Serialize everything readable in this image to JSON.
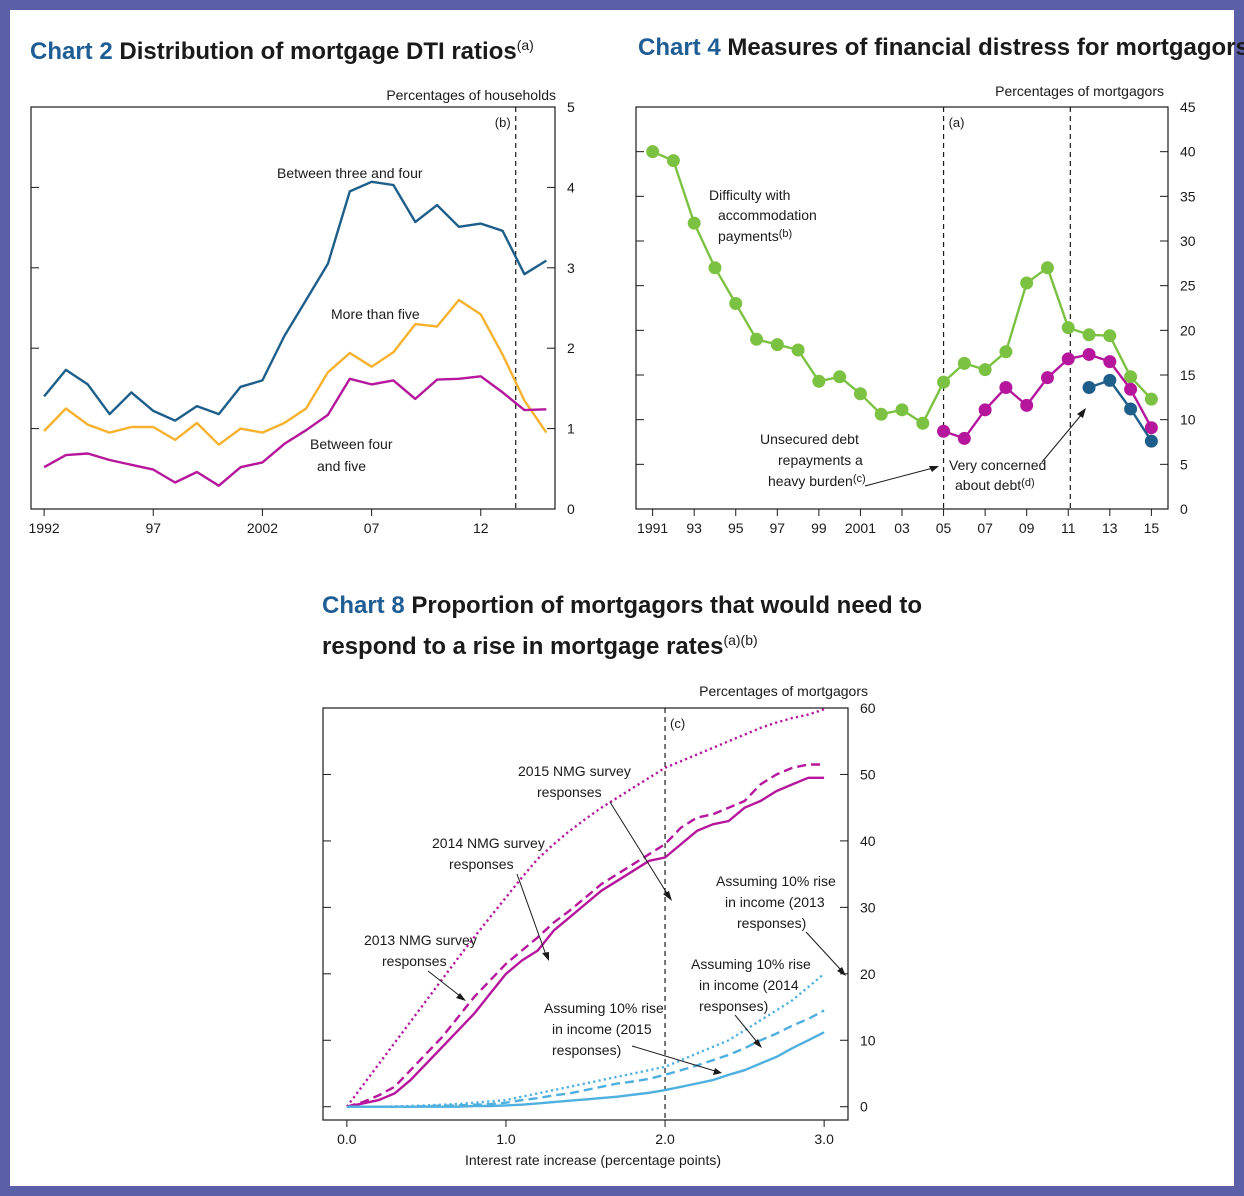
{
  "colors": {
    "frame": "#5b5fa8",
    "title_number": "#1f5d95",
    "dark_blue": "#1d5f8a",
    "yellow": "#f6b12e",
    "magenta": "#b5169c",
    "green": "#7cc242",
    "light_blue": "#4fb0e0"
  },
  "chart_data": [
    {
      "type": "line",
      "title_number": "Chart 2",
      "title": "Distribution of mortgage DTI ratios",
      "title_note": "(a)",
      "ylabel": "Percentages of households",
      "ylim": [
        0,
        5
      ],
      "yticks": [
        0,
        1,
        2,
        3,
        4,
        5
      ],
      "xlim": [
        1991.4,
        2015.4
      ],
      "xticks": [
        1992,
        1997,
        2002,
        2007,
        2012
      ],
      "xtick_labels": [
        "1992",
        "97",
        "2002",
        "07",
        "12"
      ],
      "vline": {
        "x": 2013.6,
        "label": "(b)"
      },
      "x": [
        1992,
        1993,
        1994,
        1995,
        1996,
        1997,
        1998,
        1999,
        2000,
        2001,
        2002,
        2003,
        2004,
        2005,
        2006,
        2007,
        2008,
        2009,
        2010,
        2011,
        2012,
        2013,
        2014,
        2015
      ],
      "series": [
        {
          "name": "Between three and four",
          "color": "#1d5f8a",
          "values": [
            1.4,
            1.73,
            1.55,
            1.18,
            1.45,
            1.22,
            1.1,
            1.28,
            1.18,
            1.52,
            1.6,
            2.15,
            2.6,
            3.05,
            3.95,
            4.07,
            4.03,
            3.57,
            3.78,
            3.51,
            3.55,
            3.46,
            2.92,
            3.09
          ]
        },
        {
          "name": "More than five",
          "color": "#f6b12e",
          "values": [
            0.97,
            1.25,
            1.05,
            0.95,
            1.02,
            1.02,
            0.86,
            1.07,
            0.8,
            1.0,
            0.95,
            1.07,
            1.25,
            1.7,
            1.94,
            1.77,
            1.95,
            2.3,
            2.27,
            2.6,
            2.42,
            1.92,
            1.35,
            0.95
          ]
        },
        {
          "name": "Between four and five",
          "color": "#b5169c",
          "values": [
            0.52,
            0.67,
            0.69,
            0.61,
            0.55,
            0.49,
            0.33,
            0.46,
            0.29,
            0.52,
            0.58,
            0.81,
            0.98,
            1.17,
            1.62,
            1.55,
            1.6,
            1.37,
            1.61,
            1.62,
            1.65,
            1.45,
            1.23,
            1.24
          ]
        }
      ],
      "annotations": {
        "three_four": "Between three and four",
        "more_five": "More than five",
        "four_five_1": "Between four",
        "four_five_2": "and five"
      }
    },
    {
      "type": "line",
      "title_number": "Chart 4",
      "title": "Measures of financial distress for mortgagors",
      "ylabel": "Percentages of mortgagors",
      "ylim": [
        0,
        45
      ],
      "yticks": [
        0,
        5,
        10,
        15,
        20,
        25,
        30,
        35,
        40,
        45
      ],
      "xlim": [
        1990.2,
        2015.8
      ],
      "xticks": [
        1991,
        1993,
        1995,
        1997,
        1999,
        2001,
        2003,
        2005,
        2007,
        2009,
        2011,
        2013,
        2015
      ],
      "xtick_labels": [
        "1991",
        "93",
        "95",
        "97",
        "99",
        "2001",
        "03",
        "05",
        "07",
        "09",
        "11",
        "13",
        "15"
      ],
      "vlines": [
        {
          "x": 2005,
          "label": "(a)"
        },
        {
          "x": 2011.1,
          "label": ""
        }
      ],
      "series": [
        {
          "name": "Difficulty with accommodation payments",
          "color": "#7cc242",
          "x": [
            1991,
            1992,
            1993,
            1994,
            1995,
            1996,
            1997,
            1998,
            1999,
            2000,
            2001,
            2002,
            2003,
            2004,
            2005,
            2006,
            2007,
            2008,
            2009,
            2010,
            2011,
            2012,
            2013,
            2014,
            2015
          ],
          "values": [
            40,
            39,
            32,
            27,
            23,
            19,
            18.4,
            17.8,
            14.3,
            14.8,
            12.9,
            10.6,
            11.1,
            9.6,
            14.2,
            16.3,
            15.6,
            17.6,
            25.3,
            27,
            20.3,
            19.5,
            19.4,
            14.8,
            12.3
          ]
        },
        {
          "name": "Unsecured debt repayments a heavy burden",
          "color": "#b5169c",
          "x": [
            2005,
            2006,
            2007,
            2008,
            2009,
            2010,
            2011,
            2012,
            2013,
            2014,
            2015
          ],
          "values": [
            8.7,
            7.9,
            11.1,
            13.6,
            11.6,
            14.7,
            16.8,
            17.3,
            16.5,
            13.4,
            9.1
          ]
        },
        {
          "name": "Very concerned about debt",
          "color": "#1d5f8a",
          "x": [
            2012,
            2013,
            2014,
            2015
          ],
          "values": [
            13.6,
            14.4,
            11.2,
            7.6
          ]
        }
      ],
      "annotations": {
        "green_1": "Difficulty with",
        "green_2": "accommodation",
        "green_3": "payments",
        "green_note": "(b)",
        "unsec_1": "Unsecured debt",
        "unsec_2": "repayments a",
        "unsec_3": "heavy burden",
        "unsec_note": "(c)",
        "conc_1": "Very concerned",
        "conc_2": "about debt",
        "conc_note": "(d)"
      }
    },
    {
      "type": "line",
      "title_number": "Chart 8",
      "title_line1": "Proportion of mortgagors that would need to",
      "title_line2": "respond to a rise in mortgage rates",
      "title_note": "(a)(b)",
      "ylabel": "Percentages of mortgagors",
      "xlabel": "Interest rate increase (percentage points)",
      "ylim": [
        -2,
        60
      ],
      "yticks": [
        0,
        10,
        20,
        30,
        40,
        50,
        60
      ],
      "xlim": [
        -0.15,
        3.15
      ],
      "xticks": [
        0,
        1,
        2,
        3
      ],
      "xtick_labels": [
        "0.0",
        "1.0",
        "2.0",
        "3.0"
      ],
      "vline": {
        "x": 2.0,
        "label": "(c)"
      },
      "x": [
        0,
        0.1,
        0.2,
        0.3,
        0.4,
        0.5,
        0.6,
        0.7,
        0.8,
        0.9,
        1.0,
        1.1,
        1.2,
        1.3,
        1.4,
        1.5,
        1.6,
        1.7,
        1.8,
        1.9,
        2.0,
        2.1,
        2.2,
        2.3,
        2.4,
        2.5,
        2.6,
        2.7,
        2.8,
        2.9,
        3.0
      ],
      "series": [
        {
          "name": "2013 NMG survey responses",
          "color": "#b5169c",
          "dash": "dotted",
          "values": [
            0,
            3.2,
            6.4,
            9.6,
            12.8,
            16,
            19.2,
            22.4,
            25.5,
            28.5,
            31.5,
            34.5,
            37.3,
            39.5,
            41.5,
            43.3,
            45,
            46.5,
            48,
            49.5,
            51,
            52,
            53,
            54,
            55,
            56,
            57,
            57.8,
            58.5,
            59,
            59.8
          ]
        },
        {
          "name": "2014 NMG survey responses",
          "color": "#b5169c",
          "dash": "dashed",
          "values": [
            0,
            0.7,
            1.7,
            3,
            5.5,
            8,
            10.5,
            13.5,
            16.5,
            19,
            21.5,
            23.5,
            25.5,
            27.7,
            29.5,
            31.5,
            33.5,
            35,
            36.5,
            38,
            39.5,
            42,
            43.5,
            44,
            45,
            46,
            48.5,
            50,
            51,
            51.5,
            51.5
          ]
        },
        {
          "name": "2015 NMG survey responses",
          "color": "#b5169c",
          "dash": "solid",
          "values": [
            0,
            0.5,
            1,
            2,
            4,
            6.5,
            9,
            11.5,
            14,
            17,
            20,
            22,
            23.5,
            26.5,
            28.5,
            30.5,
            32.5,
            34,
            35.5,
            37,
            37.5,
            39.5,
            41.5,
            42.5,
            43,
            45,
            46,
            47.5,
            48.5,
            49.5,
            49.5
          ]
        },
        {
          "name": "Assuming 10% rise in income (2013 responses)",
          "color": "#4fb0e0",
          "dash": "dotted",
          "values": [
            0,
            0,
            0,
            0.05,
            0.1,
            0.2,
            0.3,
            0.4,
            0.6,
            0.8,
            1,
            1.5,
            2,
            2.5,
            3,
            3.5,
            4,
            4.5,
            5,
            5.5,
            6,
            7,
            8,
            9,
            10,
            11.5,
            13,
            14.5,
            16,
            18,
            20
          ]
        },
        {
          "name": "Assuming 10% rise in income (2014 responses)",
          "color": "#4fb0e0",
          "dash": "dashed",
          "values": [
            0,
            0,
            0,
            0,
            0,
            0.1,
            0.15,
            0.2,
            0.3,
            0.4,
            0.6,
            1,
            1.3,
            1.7,
            2,
            2.5,
            3,
            3.5,
            3.8,
            4.2,
            4.8,
            5.5,
            6.2,
            7,
            7.8,
            8.8,
            10,
            11,
            12.2,
            13.2,
            14.5
          ]
        },
        {
          "name": "Assuming 10% rise in income (2015 responses)",
          "color": "#4fb0e0",
          "dash": "solid",
          "values": [
            0,
            0,
            0,
            0,
            0,
            0,
            0,
            0,
            0.1,
            0.1,
            0.2,
            0.3,
            0.5,
            0.7,
            0.9,
            1.1,
            1.3,
            1.5,
            1.8,
            2.1,
            2.5,
            3,
            3.5,
            4,
            4.8,
            5.5,
            6.5,
            7.5,
            8.8,
            10,
            11.2
          ]
        }
      ],
      "annotations": {
        "s2015_1": "2015 NMG survey",
        "s2015_2": "responses",
        "s2014_1": "2014 NMG survey",
        "s2014_2": "responses",
        "s2013_1": "2013 NMG survey",
        "s2013_2": "responses",
        "i2013_1": "Assuming 10% rise",
        "i2013_2": "in income (2013",
        "i2013_3": "responses)",
        "i2014_1": "Assuming 10% rise",
        "i2014_2": "in income (2014",
        "i2014_3": "responses)",
        "i2015_1": "Assuming 10% rise",
        "i2015_2": "in income (2015",
        "i2015_3": "responses)"
      }
    }
  ]
}
